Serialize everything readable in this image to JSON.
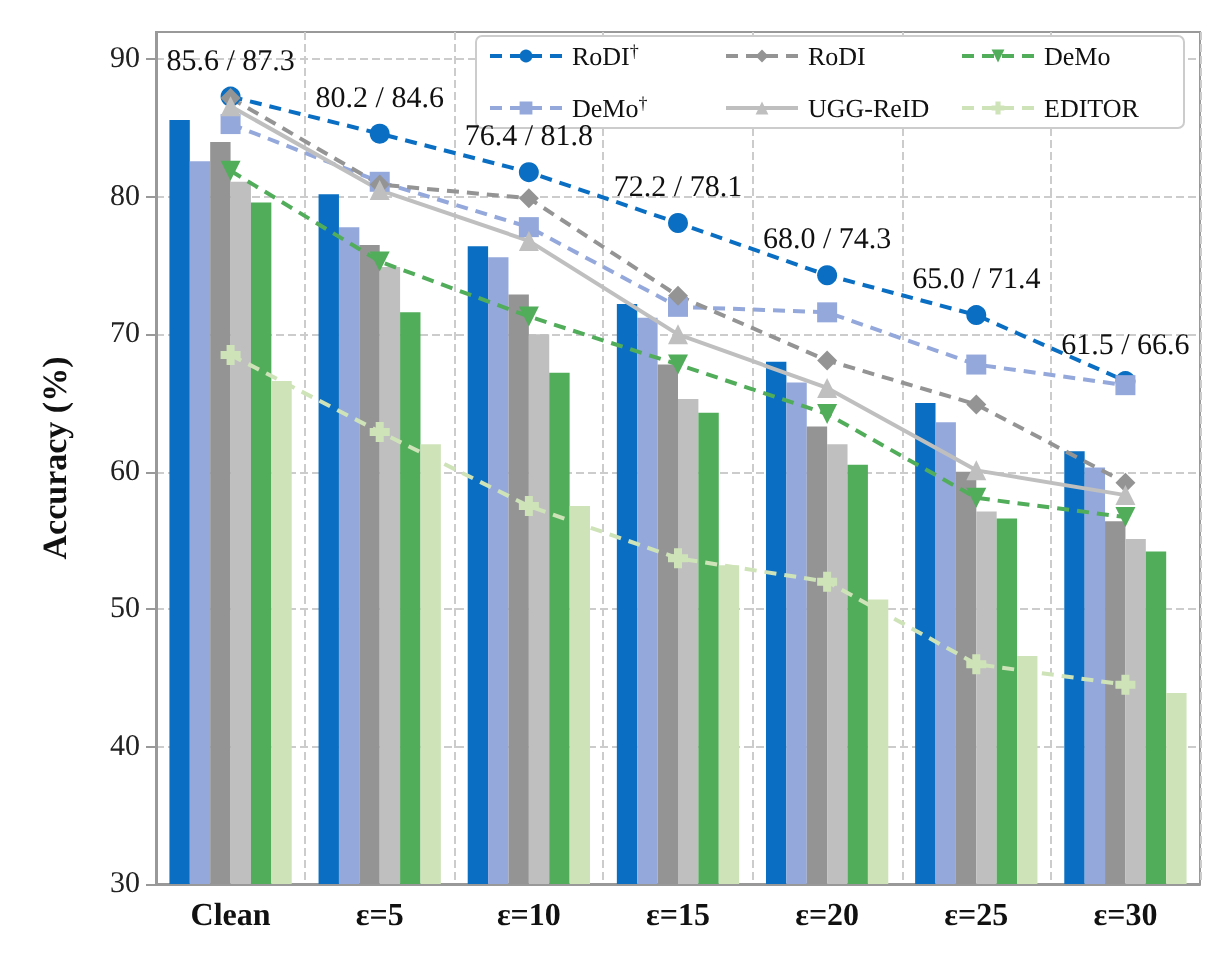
{
  "chart_data": {
    "type": "bar",
    "ylabel": "Accuracy (%)",
    "categories": [
      "Clean",
      "ε=5",
      "ε=10",
      "ε=15",
      "ε=20",
      "ε=25",
      "ε=30"
    ],
    "series": [
      {
        "color": "#0a6fc2",
        "values": [
          85.6,
          80.2,
          76.4,
          72.2,
          68.0,
          65.0,
          61.5
        ]
      },
      {
        "color": "#94a8dc",
        "values": [
          82.6,
          77.8,
          75.6,
          71.2,
          66.5,
          63.6,
          60.3
        ]
      },
      {
        "color": "#949494",
        "values": [
          84.0,
          76.5,
          72.9,
          67.8,
          63.3,
          60.0,
          56.4
        ]
      },
      {
        "color": "#bfbfbf",
        "values": [
          81.1,
          74.9,
          70.0,
          65.3,
          62.0,
          57.1,
          55.1
        ]
      },
      {
        "color": "#52ad5b",
        "values": [
          79.6,
          71.6,
          67.2,
          64.3,
          60.5,
          56.6,
          54.2
        ]
      },
      {
        "color": "#cfe3b8",
        "values": [
          66.6,
          62.0,
          57.5,
          53.2,
          50.7,
          46.6,
          43.9
        ]
      },
      {
        "type": "line",
        "name": "RoDI$^{†}$",
        "color": "#0a6fc2",
        "marker": "circle",
        "line_style": "dashed",
        "values": [
          87.3,
          84.6,
          81.8,
          78.1,
          74.3,
          71.4,
          66.6
        ]
      },
      {
        "type": "line",
        "name": "DeMo$^{†}$",
        "color": "#94a8dc",
        "marker": "square",
        "line_style": "dashed",
        "values": [
          85.3,
          81.1,
          77.8,
          72.0,
          71.6,
          67.8,
          66.3
        ]
      },
      {
        "type": "line",
        "name": "RoDI",
        "color": "#949494",
        "marker": "diamond",
        "line_style": "dashed",
        "values": [
          87.2,
          80.9,
          79.9,
          72.8,
          68.1,
          64.9,
          59.2
        ]
      },
      {
        "type": "line",
        "name": "UGG-ReID",
        "color": "#bfbfbf",
        "marker": "triangle",
        "line_style": "solid",
        "values": [
          86.6,
          80.5,
          76.8,
          70.0,
          66.1,
          60.1,
          58.3
        ]
      },
      {
        "type": "line",
        "name": "DeMo",
        "color": "#52ad5b",
        "marker": "triangle-down",
        "line_style": "dashed",
        "values": [
          81.9,
          75.3,
          71.3,
          67.8,
          64.2,
          58.1,
          56.7
        ]
      },
      {
        "type": "line",
        "name": "EDITOR",
        "color": "#cfe3b8",
        "marker": "cross",
        "line_style": "dashed",
        "values": [
          68.5,
          62.9,
          57.5,
          53.7,
          52.0,
          46.0,
          44.5
        ]
      }
    ],
    "ylim": [
      30,
      92
    ],
    "yticks": [
      30,
      40,
      50,
      60,
      70,
      80,
      90
    ],
    "grid": true,
    "legend": "top right",
    "annotations": [
      {
        "text": "85.6 / 87.3",
        "x": "Clean",
        "y": 87.3
      },
      {
        "text": "80.2 / 84.6",
        "x": "ε=5",
        "y": 84.6
      },
      {
        "text": "76.4 / 81.8",
        "x": "ε=10",
        "y": 81.8
      },
      {
        "text": "72.2 / 78.1",
        "x": "ε=15",
        "y": 78.1
      },
      {
        "text": "68.0 / 74.3",
        "x": "ε=20",
        "y": 74.3
      },
      {
        "text": "65.0 / 71.4",
        "x": "ε=25",
        "y": 71.4
      },
      {
        "text": "61.5 / 66.6",
        "x": "ε=30",
        "y": 66.6
      }
    ]
  }
}
